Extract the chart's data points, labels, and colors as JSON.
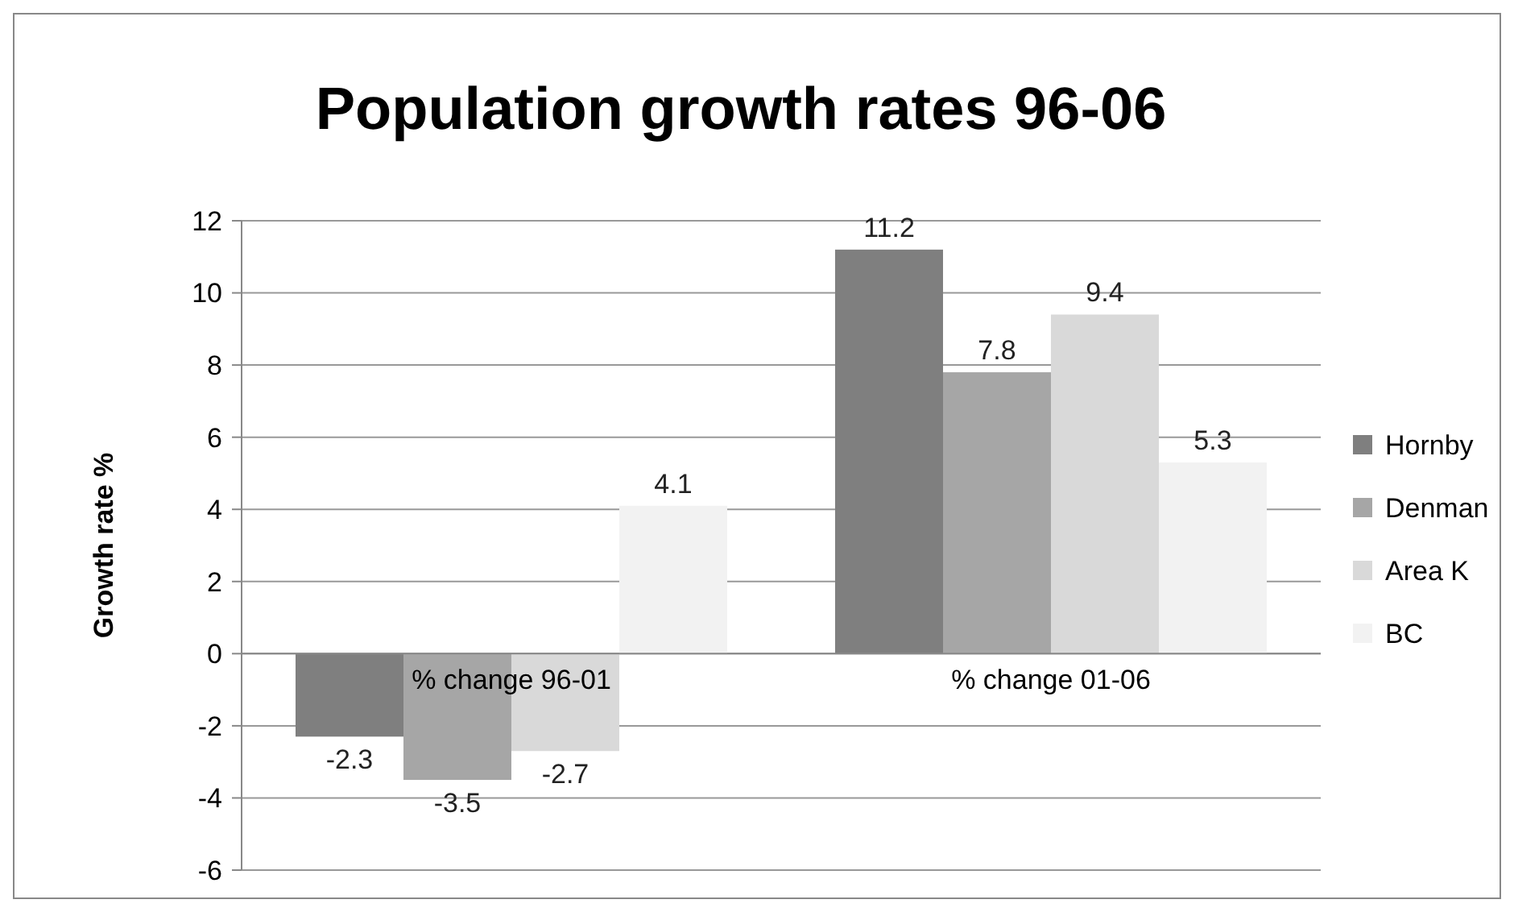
{
  "chart_data": {
    "type": "bar",
    "title": "Population growth rates 96-06",
    "ylabel": "Growth rate %",
    "categories": [
      "% change 96-01",
      "% change 01-06"
    ],
    "series": [
      {
        "name": "Hornby",
        "color": "#7f7f7f",
        "values": [
          -2.3,
          11.2
        ]
      },
      {
        "name": "Denman",
        "color": "#a6a6a6",
        "values": [
          -3.5,
          7.8
        ]
      },
      {
        "name": "Area K",
        "color": "#d9d9d9",
        "values": [
          -2.7,
          9.4
        ]
      },
      {
        "name": "BC",
        "color": "#f2f2f2",
        "values": [
          4.1,
          5.3
        ]
      }
    ],
    "ylim": [
      -6,
      12
    ],
    "yticks": [
      -6,
      -4,
      -2,
      0,
      2,
      4,
      6,
      8,
      10,
      12
    ],
    "grid": "y",
    "legend": "right",
    "data_labels": true
  }
}
